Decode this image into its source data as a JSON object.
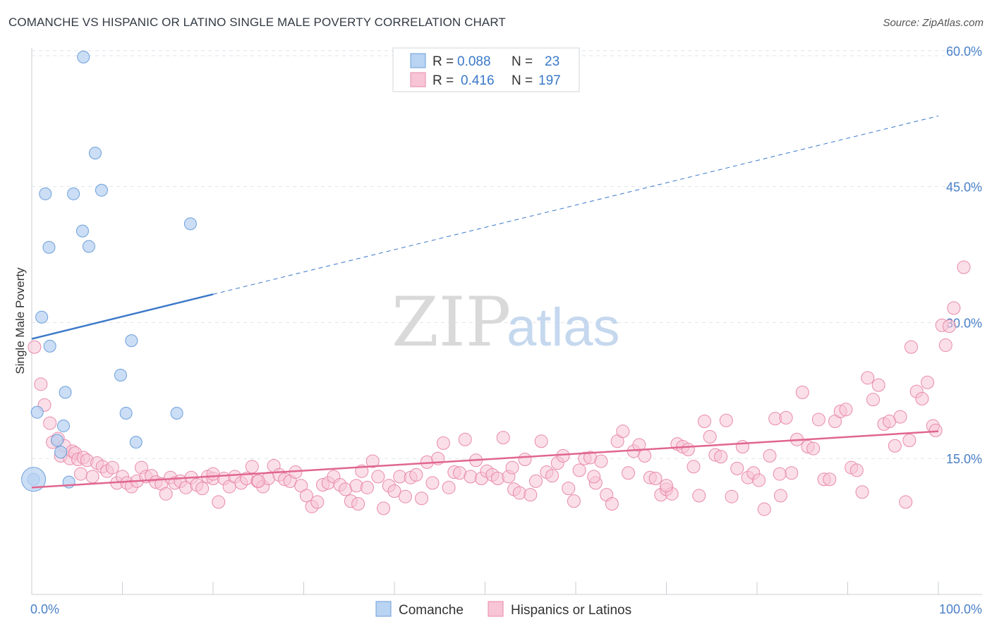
{
  "title": "COMANCHE VS HISPANIC OR LATINO SINGLE MALE POVERTY CORRELATION CHART",
  "source": "Source: ZipAtlas.com",
  "watermark": {
    "zip": "ZIP",
    "atlas": "atlas"
  },
  "legend_box": {
    "rows": [
      {
        "r_label": "R =",
        "r_value": "0.088",
        "n_label": "N =",
        "n_value": "23"
      },
      {
        "r_label": "R =",
        "r_value": "0.416",
        "n_label": "N =",
        "n_value": "197"
      }
    ]
  },
  "bottom_legend": [
    "Comanche",
    "Hispanics or Latinos"
  ],
  "colors": {
    "blue_fill": "#b9d3f2",
    "blue_stroke": "#6c9fdb",
    "blue_line": "#3a78c9",
    "pink_fill": "#f7c5d5",
    "pink_stroke": "#e88aa9",
    "pink_line": "#e0668f",
    "tick_text": "#4a80c8",
    "grid": "#dfe3ea"
  },
  "chart_data": {
    "type": "scatter",
    "title": "COMANCHE VS HISPANIC OR LATINO SINGLE MALE POVERTY CORRELATION CHART",
    "xlabel": "",
    "ylabel": "Single Male Poverty",
    "xlim": [
      0,
      100
    ],
    "ylim": [
      0,
      60.3
    ],
    "x_tick_labels": [
      "0.0%",
      "100.0%"
    ],
    "y_ticks": [
      15,
      30,
      45,
      60
    ],
    "y_tick_labels": [
      "15.0%",
      "30.0%",
      "45.0%",
      "60.0%"
    ],
    "grid": "horizontal dashed",
    "series": [
      {
        "name": "Comanche",
        "color": "#b9d3f2",
        "points": [
          [
            0.2,
            12.7
          ],
          [
            0.6,
            20.1
          ],
          [
            1.1,
            30.6
          ],
          [
            1.5,
            44.2
          ],
          [
            1.9,
            38.3
          ],
          [
            2.0,
            27.4
          ],
          [
            2.8,
            17.0
          ],
          [
            3.2,
            15.7
          ],
          [
            3.5,
            18.6
          ],
          [
            3.7,
            22.3
          ],
          [
            4.1,
            12.4
          ],
          [
            4.6,
            44.2
          ],
          [
            5.6,
            40.1
          ],
          [
            5.7,
            59.3
          ],
          [
            6.3,
            38.4
          ],
          [
            7.0,
            48.7
          ],
          [
            7.7,
            44.6
          ],
          [
            9.8,
            24.2
          ],
          [
            10.4,
            20.0
          ],
          [
            11.0,
            28.0
          ],
          [
            11.5,
            16.8
          ],
          [
            16.0,
            20.0
          ],
          [
            17.5,
            40.9
          ]
        ],
        "trend": {
          "x": [
            0,
            100
          ],
          "y": [
            28.2,
            52.8
          ],
          "solid_until_x": 20
        }
      },
      {
        "name": "Hispanics or Latinos",
        "color": "#f7c5d5",
        "points": [
          [
            0.3,
            27.3
          ],
          [
            1.0,
            23.2
          ],
          [
            1.4,
            20.9
          ],
          [
            2.0,
            18.9
          ],
          [
            2.3,
            16.8
          ],
          [
            2.9,
            17.2
          ],
          [
            3.2,
            15.3
          ],
          [
            3.6,
            16.4
          ],
          [
            4.2,
            15.0
          ],
          [
            4.5,
            15.8
          ],
          [
            4.8,
            15.6
          ],
          [
            5.1,
            14.9
          ],
          [
            5.4,
            13.3
          ],
          [
            5.7,
            15.1
          ],
          [
            6.1,
            14.8
          ],
          [
            6.7,
            13.0
          ],
          [
            7.2,
            14.5
          ],
          [
            7.8,
            14.1
          ],
          [
            8.3,
            13.6
          ],
          [
            8.9,
            14.0
          ],
          [
            9.4,
            12.3
          ],
          [
            10.0,
            13.0
          ],
          [
            10.5,
            12.3
          ],
          [
            11.0,
            11.9
          ],
          [
            11.6,
            12.5
          ],
          [
            12.1,
            14.0
          ],
          [
            12.6,
            13.0
          ],
          [
            13.2,
            13.1
          ],
          [
            13.7,
            12.4
          ],
          [
            14.3,
            12.2
          ],
          [
            14.8,
            11.1
          ],
          [
            15.3,
            12.9
          ],
          [
            15.8,
            12.3
          ],
          [
            16.4,
            12.5
          ],
          [
            17.0,
            11.8
          ],
          [
            17.6,
            12.9
          ],
          [
            18.2,
            12.1
          ],
          [
            18.8,
            11.7
          ],
          [
            19.4,
            13.0
          ],
          [
            20.0,
            12.8
          ],
          [
            20.6,
            10.2
          ],
          [
            21.2,
            12.8
          ],
          [
            21.8,
            11.9
          ],
          [
            22.4,
            13.0
          ],
          [
            23.1,
            12.3
          ],
          [
            23.7,
            12.8
          ],
          [
            24.3,
            14.1
          ],
          [
            24.9,
            12.5
          ],
          [
            25.5,
            11.9
          ],
          [
            26.1,
            12.8
          ],
          [
            26.7,
            14.2
          ],
          [
            27.3,
            13.2
          ],
          [
            27.9,
            12.7
          ],
          [
            28.5,
            12.5
          ],
          [
            29.1,
            13.5
          ],
          [
            29.7,
            12.0
          ],
          [
            30.3,
            10.9
          ],
          [
            30.9,
            9.7
          ],
          [
            31.5,
            10.2
          ],
          [
            32.1,
            12.1
          ],
          [
            32.7,
            12.3
          ],
          [
            33.3,
            13.0
          ],
          [
            34.0,
            12.1
          ],
          [
            34.6,
            11.6
          ],
          [
            35.2,
            10.3
          ],
          [
            35.8,
            12.0
          ],
          [
            36.4,
            13.6
          ],
          [
            37.0,
            11.8
          ],
          [
            37.6,
            14.7
          ],
          [
            38.2,
            13.0
          ],
          [
            38.8,
            9.5
          ],
          [
            39.4,
            12.0
          ],
          [
            40.0,
            11.4
          ],
          [
            40.6,
            13.0
          ],
          [
            41.2,
            10.8
          ],
          [
            41.8,
            12.9
          ],
          [
            42.4,
            13.2
          ],
          [
            43.0,
            10.6
          ],
          [
            43.6,
            14.6
          ],
          [
            44.2,
            12.3
          ],
          [
            44.8,
            15.0
          ],
          [
            45.4,
            16.7
          ],
          [
            46.0,
            11.8
          ],
          [
            46.6,
            13.5
          ],
          [
            47.2,
            13.4
          ],
          [
            47.8,
            17.1
          ],
          [
            48.4,
            13.0
          ],
          [
            49.0,
            14.8
          ],
          [
            49.6,
            12.8
          ],
          [
            50.2,
            13.6
          ],
          [
            50.8,
            13.2
          ],
          [
            51.4,
            12.8
          ],
          [
            52.0,
            17.3
          ],
          [
            52.6,
            13.0
          ],
          [
            53.2,
            11.6
          ],
          [
            53.8,
            11.2
          ],
          [
            54.4,
            14.9
          ],
          [
            55.0,
            11.0
          ],
          [
            55.6,
            12.5
          ],
          [
            56.2,
            16.9
          ],
          [
            56.8,
            13.5
          ],
          [
            57.4,
            13.1
          ],
          [
            58.0,
            14.5
          ],
          [
            58.6,
            15.3
          ],
          [
            59.2,
            11.7
          ],
          [
            59.8,
            10.3
          ],
          [
            60.4,
            13.7
          ],
          [
            61.0,
            15.0
          ],
          [
            61.6,
            15.1
          ],
          [
            62.2,
            12.3
          ],
          [
            62.8,
            14.7
          ],
          [
            63.4,
            11.0
          ],
          [
            64.0,
            10.0
          ],
          [
            64.6,
            16.9
          ],
          [
            65.2,
            18.0
          ],
          [
            65.8,
            13.4
          ],
          [
            66.4,
            15.8
          ],
          [
            67.0,
            16.5
          ],
          [
            67.6,
            15.3
          ],
          [
            68.2,
            12.9
          ],
          [
            68.8,
            12.8
          ],
          [
            69.4,
            11.0
          ],
          [
            70.0,
            11.6
          ],
          [
            70.6,
            11.1
          ],
          [
            71.2,
            16.6
          ],
          [
            71.8,
            16.3
          ],
          [
            72.4,
            16.0
          ],
          [
            73.0,
            14.1
          ],
          [
            73.6,
            10.9
          ],
          [
            74.2,
            19.1
          ],
          [
            74.8,
            17.4
          ],
          [
            75.4,
            15.4
          ],
          [
            76.0,
            15.2
          ],
          [
            76.6,
            19.2
          ],
          [
            77.2,
            10.8
          ],
          [
            77.8,
            13.9
          ],
          [
            78.4,
            16.3
          ],
          [
            79.0,
            12.9
          ],
          [
            79.6,
            13.4
          ],
          [
            80.2,
            12.6
          ],
          [
            80.8,
            9.4
          ],
          [
            81.4,
            15.3
          ],
          [
            82.0,
            19.4
          ],
          [
            82.6,
            10.9
          ],
          [
            83.2,
            19.5
          ],
          [
            83.8,
            13.4
          ],
          [
            84.4,
            17.1
          ],
          [
            85.0,
            22.3
          ],
          [
            85.6,
            16.3
          ],
          [
            86.2,
            16.1
          ],
          [
            86.8,
            19.3
          ],
          [
            87.4,
            12.7
          ],
          [
            88.0,
            12.7
          ],
          [
            88.6,
            19.1
          ],
          [
            89.2,
            20.2
          ],
          [
            89.8,
            20.4
          ],
          [
            90.4,
            14.0
          ],
          [
            91.0,
            13.7
          ],
          [
            91.6,
            11.3
          ],
          [
            92.2,
            23.9
          ],
          [
            92.8,
            21.5
          ],
          [
            93.4,
            23.1
          ],
          [
            94.0,
            18.8
          ],
          [
            94.6,
            19.1
          ],
          [
            95.2,
            16.4
          ],
          [
            95.8,
            19.6
          ],
          [
            96.4,
            10.2
          ],
          [
            97.0,
            27.3
          ],
          [
            97.6,
            22.4
          ],
          [
            98.2,
            21.6
          ],
          [
            98.8,
            23.4
          ],
          [
            99.4,
            18.6
          ],
          [
            99.7,
            18.1
          ],
          [
            100.4,
            29.7
          ],
          [
            100.8,
            27.5
          ],
          [
            101.2,
            29.6
          ],
          [
            101.7,
            31.6
          ],
          [
            102.8,
            36.1
          ],
          [
            96.8,
            17.0
          ],
          [
            82.5,
            13.3
          ],
          [
            62.0,
            13.0
          ],
          [
            36.0,
            10.0
          ],
          [
            25.0,
            12.5
          ],
          [
            20.0,
            13.3
          ],
          [
            53.0,
            14.0
          ],
          [
            70.0,
            12.0
          ]
        ],
        "trend": {
          "x": [
            0,
            100
          ],
          "y": [
            11.8,
            18.0
          ]
        }
      }
    ]
  }
}
